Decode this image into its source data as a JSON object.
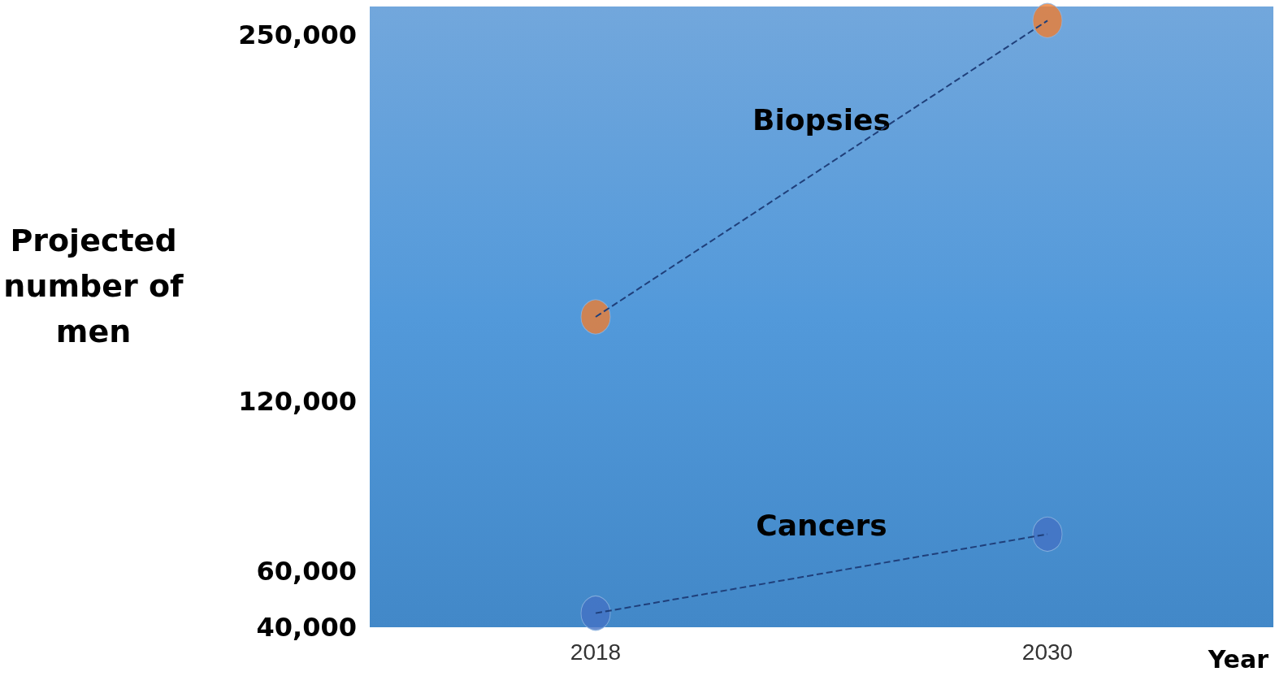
{
  "chart_data": {
    "type": "line",
    "xlabel": "Year",
    "ylabel": "Projected number of men",
    "categories": [
      "2018",
      "2030"
    ],
    "series": [
      {
        "name": "Biopsies",
        "color": "#ed7d31",
        "values": [
          150000,
          255000
        ]
      },
      {
        "name": "Cancers",
        "color": "#4472c4",
        "values": [
          45000,
          73000
        ]
      }
    ],
    "ylim": [
      40000,
      260000
    ],
    "yticks": [
      {
        "value": 40000,
        "label": "40,000"
      },
      {
        "value": 60000,
        "label": "60,000"
      },
      {
        "value": 120000,
        "label": "120,000"
      },
      {
        "value": 250000,
        "label": "250,000"
      }
    ],
    "marker": "circle",
    "line_style": "dashed",
    "grid": false,
    "legend": false
  }
}
